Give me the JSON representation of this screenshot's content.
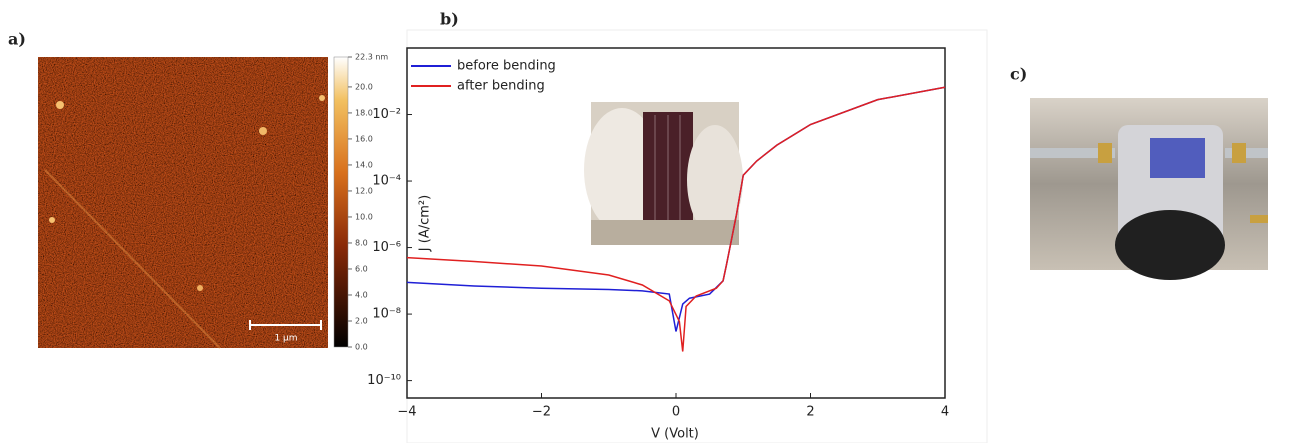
{
  "panel_labels": [
    "a)",
    "b)",
    "c)"
  ],
  "scale_bar": "1 µm",
  "chart_data": [
    {
      "type": "colorbar",
      "ylim": [
        0,
        22.3
      ],
      "yticks": [
        {
          "value": 0,
          "label": "0.0"
        },
        {
          "value": 2,
          "label": "2.0"
        },
        {
          "value": 4,
          "label": "4.0"
        },
        {
          "value": 6,
          "label": "6.0"
        },
        {
          "value": 8,
          "label": "8.0"
        },
        {
          "value": 10,
          "label": "10.0"
        },
        {
          "value": 12,
          "label": "12.0"
        },
        {
          "value": 14,
          "label": "14.0"
        },
        {
          "value": 16,
          "label": "16.0"
        },
        {
          "value": 18,
          "label": "18.0"
        },
        {
          "value": 20,
          "label": "20.0"
        },
        {
          "value": 22.3,
          "label": "22.3 nm"
        }
      ]
    },
    {
      "type": "line",
      "x_label": "V (Volt)",
      "y_label": "J (A/cm²)",
      "log_y": true,
      "legend": "upper left",
      "xlim": [
        -4,
        4
      ],
      "xticks": [
        {
          "value": -4,
          "label": "−4"
        },
        {
          "value": -2,
          "label": "−2"
        },
        0,
        2,
        4
      ],
      "ylim": [
        3e-11,
        1
      ],
      "yticks": [
        {
          "value": 1e-10,
          "label": "10⁻¹⁰"
        },
        {
          "value": 1e-08,
          "label": "10⁻⁸"
        },
        {
          "value": 1e-06,
          "label": "10⁻⁶"
        },
        {
          "value": 0.0001,
          "label": "10⁻⁴"
        },
        {
          "value": 0.01,
          "label": "10⁻²"
        }
      ],
      "series": [
        {
          "name": "before bending",
          "color": "#1f1fd6",
          "x": [
            -4,
            -3,
            -2,
            -1,
            -0.5,
            -0.1,
            0,
            0.1,
            0.2,
            0.5,
            0.7,
            0.75,
            0.9,
            1.0,
            1.2,
            1.5,
            2,
            3,
            4
          ],
          "values": [
            9e-08,
            7e-08,
            6e-08,
            5.5e-08,
            5e-08,
            4e-08,
            3e-09,
            2e-08,
            3e-08,
            4e-08,
            1e-07,
            3e-07,
            1e-05,
            0.00015,
            0.0004,
            0.0012,
            0.005,
            0.028,
            0.066
          ]
        },
        {
          "name": "after bending",
          "color": "#e02020",
          "x": [
            -4,
            -3,
            -2,
            -1,
            -0.5,
            -0.1,
            0.05,
            0.1,
            0.15,
            0.3,
            0.6,
            0.7,
            0.75,
            0.9,
            1.0,
            1.2,
            1.5,
            2,
            3,
            4
          ],
          "values": [
            5e-07,
            3.8e-07,
            2.8e-07,
            1.5e-07,
            7.5e-08,
            2.5e-08,
            6e-09,
            7.5e-10,
            1.7e-08,
            3.5e-08,
            6e-08,
            1e-07,
            3e-07,
            1e-05,
            0.00015,
            0.0004,
            0.0012,
            0.005,
            0.028,
            0.066
          ]
        }
      ]
    }
  ]
}
